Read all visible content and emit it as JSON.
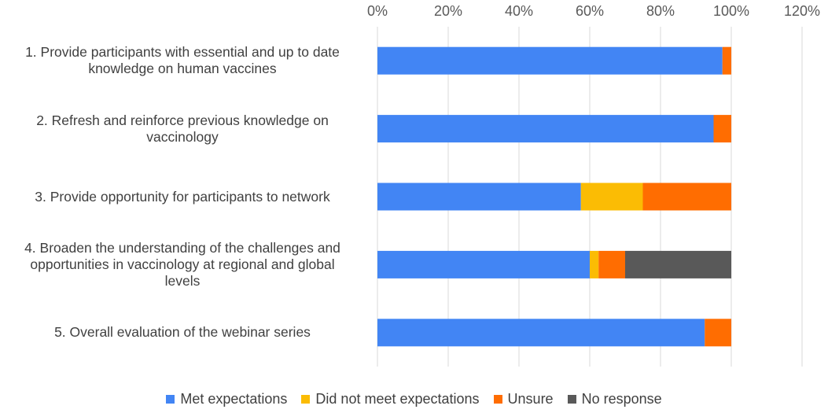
{
  "chart_data": {
    "type": "bar",
    "orientation": "horizontal",
    "stacked": true,
    "categories": [
      "1. Provide participants with essential and up to date knowledge on human vaccines",
      "2. Refresh and reinforce previous knowledge on vaccinology",
      "3. Provide opportunity for participants to network",
      "4. Broaden the understanding of the challenges and opportunities in vaccinology at regional and global levels",
      "5. Overall evaluation of the webinar series"
    ],
    "series": [
      {
        "name": "Met expectations",
        "color": "#4285F4",
        "values": [
          97.5,
          95,
          57.5,
          60,
          92.5
        ]
      },
      {
        "name": "Did not meet expectations",
        "color": "#FBBC04",
        "values": [
          0,
          0,
          17.5,
          2.5,
          0
        ]
      },
      {
        "name": "Unsure",
        "color": "#FF6D01",
        "values": [
          2.5,
          5,
          25,
          7.5,
          7.5
        ]
      },
      {
        "name": "No response",
        "color": "#595959",
        "values": [
          0,
          0,
          0,
          30,
          0
        ]
      }
    ],
    "xlim": [
      0,
      120
    ],
    "xticks": [
      "0%",
      "20%",
      "40%",
      "60%",
      "80%",
      "100%",
      "120%"
    ],
    "xaxis_position": "top",
    "grid": true,
    "legend": "bottom",
    "title": "",
    "xlabel": "",
    "ylabel": ""
  }
}
